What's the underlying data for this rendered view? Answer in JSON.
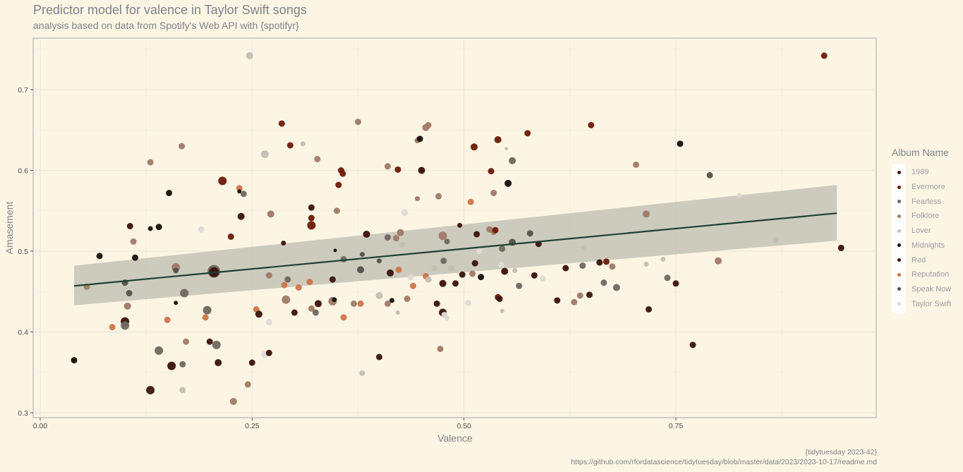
{
  "title": "Predictor model for valence in Taylor Swift songs",
  "subtitle": "analysis based on data from Spotify's Web API with {spotifyr}",
  "caption": {
    "line1": "{tidytuesday 2023-42}",
    "line2": "https://github.com/rfordatascience/tidytuesday/blob/master/data/2023/2023-10-17/readme.md"
  },
  "legend": {
    "title": "Album Name",
    "items": [
      {
        "name": "1989",
        "color": "#3d1510"
      },
      {
        "name": "Evermore",
        "color": "#6b1a06"
      },
      {
        "name": "Fearless",
        "color": "#706660"
      },
      {
        "name": "Folklore",
        "color": "#a07a66"
      },
      {
        "name": "Lover",
        "color": "#c4bdb4"
      },
      {
        "name": "Midnights",
        "color": "#16100c"
      },
      {
        "name": "Red",
        "color": "#3a1208"
      },
      {
        "name": "Reputation",
        "color": "#cf7448"
      },
      {
        "name": "Speak Now",
        "color": "#54504c"
      },
      {
        "name": "Taylor Swift",
        "color": "#dedad6"
      }
    ]
  },
  "chart_data": {
    "type": "scatter",
    "xlabel": "Valence",
    "ylabel": "Amasement",
    "xlim": [
      0,
      0.99
    ],
    "ylim": [
      0.3,
      0.74
    ],
    "xticks": [
      {
        "v": 0,
        "label": "0.00"
      },
      {
        "v": 0.25,
        "label": "0.25"
      },
      {
        "v": 0.5,
        "label": "0.50"
      },
      {
        "v": 0.75,
        "label": "0.75"
      }
    ],
    "yticks": [
      {
        "v": 0.3,
        "label": "0.3"
      },
      {
        "v": 0.4,
        "label": "0.4"
      },
      {
        "v": 0.5,
        "label": "0.5"
      },
      {
        "v": 0.6,
        "label": "0.6"
      },
      {
        "v": 0.7,
        "label": "0.7"
      }
    ],
    "fit": {
      "x0": 0.04,
      "y0": 0.457,
      "x1": 0.94,
      "y1": 0.547,
      "ci0": [
        0.433,
        0.482
      ],
      "ci1": [
        0.513,
        0.582
      ],
      "color": "#1d4033",
      "band_color": "#c4c3b6"
    },
    "points": [
      {
        "x": 0.925,
        "y": 0.742,
        "a": 1
      },
      {
        "x": 0.247,
        "y": 0.742,
        "a": 4,
        "s": 10
      },
      {
        "x": 0.945,
        "y": 0.504,
        "a": 6
      },
      {
        "x": 0.04,
        "y": 0.365,
        "a": 5
      },
      {
        "x": 0.07,
        "y": 0.494,
        "a": 5
      },
      {
        "x": 0.055,
        "y": 0.456,
        "a": 3
      },
      {
        "x": 0.085,
        "y": 0.406,
        "a": 7
      },
      {
        "x": 0.1,
        "y": 0.461,
        "a": 8
      },
      {
        "x": 0.1,
        "y": 0.413,
        "a": 6,
        "s": 12
      },
      {
        "x": 0.1,
        "y": 0.408,
        "a": 2,
        "s": 12
      },
      {
        "x": 0.103,
        "y": 0.432,
        "a": 3,
        "s": 10
      },
      {
        "x": 0.105,
        "y": 0.448,
        "a": 8
      },
      {
        "x": 0.106,
        "y": 0.531,
        "a": 6
      },
      {
        "x": 0.11,
        "y": 0.512,
        "a": 3
      },
      {
        "x": 0.112,
        "y": 0.492,
        "a": 5
      },
      {
        "x": 0.13,
        "y": 0.528,
        "a": 5,
        "s": 7
      },
      {
        "x": 0.13,
        "y": 0.61,
        "a": 3
      },
      {
        "x": 0.13,
        "y": 0.328,
        "a": 0,
        "s": 12
      },
      {
        "x": 0.14,
        "y": 0.53,
        "a": 5,
        "s": 9
      },
      {
        "x": 0.14,
        "y": 0.377,
        "a": 2,
        "s": 12
      },
      {
        "x": 0.15,
        "y": 0.415,
        "a": 7
      },
      {
        "x": 0.152,
        "y": 0.572,
        "a": 5
      },
      {
        "x": 0.155,
        "y": 0.358,
        "a": 6,
        "s": 12
      },
      {
        "x": 0.16,
        "y": 0.48,
        "a": 3,
        "s": 12
      },
      {
        "x": 0.16,
        "y": 0.476,
        "a": 8,
        "s": 8
      },
      {
        "x": 0.16,
        "y": 0.436,
        "a": 5,
        "s": 6
      },
      {
        "x": 0.167,
        "y": 0.63,
        "a": 3
      },
      {
        "x": 0.168,
        "y": 0.36,
        "a": 2
      },
      {
        "x": 0.168,
        "y": 0.328,
        "a": 4
      },
      {
        "x": 0.17,
        "y": 0.448,
        "a": 2,
        "s": 12
      },
      {
        "x": 0.172,
        "y": 0.388,
        "a": 3
      },
      {
        "x": 0.19,
        "y": 0.527,
        "a": 9
      },
      {
        "x": 0.195,
        "y": 0.418,
        "a": 7
      },
      {
        "x": 0.197,
        "y": 0.427,
        "a": 2,
        "s": 12
      },
      {
        "x": 0.2,
        "y": 0.388,
        "a": 6
      },
      {
        "x": 0.205,
        "y": 0.475,
        "a": 2,
        "s": 18
      },
      {
        "x": 0.205,
        "y": 0.474,
        "a": 6,
        "s": 14
      },
      {
        "x": 0.208,
        "y": 0.384,
        "a": 2,
        "s": 12
      },
      {
        "x": 0.21,
        "y": 0.362,
        "a": 6,
        "s": 10
      },
      {
        "x": 0.215,
        "y": 0.587,
        "a": 1,
        "s": 12
      },
      {
        "x": 0.225,
        "y": 0.518,
        "a": 1
      },
      {
        "x": 0.228,
        "y": 0.314,
        "a": 3,
        "s": 10
      },
      {
        "x": 0.235,
        "y": 0.578,
        "a": 7
      },
      {
        "x": 0.235,
        "y": 0.574,
        "a": 5,
        "s": 6
      },
      {
        "x": 0.237,
        "y": 0.543,
        "a": 6,
        "s": 10
      },
      {
        "x": 0.24,
        "y": 0.571,
        "a": 2
      },
      {
        "x": 0.245,
        "y": 0.335,
        "a": 3
      },
      {
        "x": 0.25,
        "y": 0.362,
        "a": 6
      },
      {
        "x": 0.255,
        "y": 0.428,
        "a": 7
      },
      {
        "x": 0.258,
        "y": 0.422,
        "a": 6,
        "s": 10
      },
      {
        "x": 0.265,
        "y": 0.62,
        "a": 4,
        "s": 11
      },
      {
        "x": 0.265,
        "y": 0.372,
        "a": 9,
        "s": 10
      },
      {
        "x": 0.27,
        "y": 0.374,
        "a": 6
      },
      {
        "x": 0.27,
        "y": 0.412,
        "a": 9
      },
      {
        "x": 0.27,
        "y": 0.47,
        "a": 3
      },
      {
        "x": 0.272,
        "y": 0.546,
        "a": 3,
        "s": 10
      },
      {
        "x": 0.285,
        "y": 0.658,
        "a": 1
      },
      {
        "x": 0.287,
        "y": 0.51,
        "a": 6,
        "s": 7
      },
      {
        "x": 0.288,
        "y": 0.458,
        "a": 7
      },
      {
        "x": 0.29,
        "y": 0.44,
        "a": 3,
        "s": 12
      },
      {
        "x": 0.292,
        "y": 0.465,
        "a": 2
      },
      {
        "x": 0.295,
        "y": 0.631,
        "a": 1
      },
      {
        "x": 0.3,
        "y": 0.424,
        "a": 6
      },
      {
        "x": 0.305,
        "y": 0.455,
        "a": 7
      },
      {
        "x": 0.31,
        "y": 0.633,
        "a": 4,
        "s": 7
      },
      {
        "x": 0.318,
        "y": 0.462,
        "a": 7
      },
      {
        "x": 0.32,
        "y": 0.554,
        "a": 6
      },
      {
        "x": 0.32,
        "y": 0.541,
        "a": 1
      },
      {
        "x": 0.32,
        "y": 0.532,
        "a": 1,
        "s": 12
      },
      {
        "x": 0.32,
        "y": 0.429,
        "a": 3
      },
      {
        "x": 0.325,
        "y": 0.424,
        "a": 2
      },
      {
        "x": 0.327,
        "y": 0.614,
        "a": 3
      },
      {
        "x": 0.328,
        "y": 0.435,
        "a": 6,
        "s": 10
      },
      {
        "x": 0.345,
        "y": 0.465,
        "a": 6
      },
      {
        "x": 0.345,
        "y": 0.438,
        "a": 3,
        "s": 12
      },
      {
        "x": 0.347,
        "y": 0.44,
        "a": 5,
        "s": 7
      },
      {
        "x": 0.348,
        "y": 0.501,
        "a": 5,
        "s": 5
      },
      {
        "x": 0.35,
        "y": 0.55,
        "a": 3
      },
      {
        "x": 0.352,
        "y": 0.582,
        "a": 1
      },
      {
        "x": 0.355,
        "y": 0.6,
        "a": 1
      },
      {
        "x": 0.357,
        "y": 0.596,
        "a": 1
      },
      {
        "x": 0.358,
        "y": 0.418,
        "a": 7
      },
      {
        "x": 0.358,
        "y": 0.49,
        "a": 2
      },
      {
        "x": 0.37,
        "y": 0.435,
        "a": 3
      },
      {
        "x": 0.375,
        "y": 0.66,
        "a": 3
      },
      {
        "x": 0.378,
        "y": 0.477,
        "a": 8,
        "s": 10
      },
      {
        "x": 0.378,
        "y": 0.435,
        "a": 7
      },
      {
        "x": 0.38,
        "y": 0.349,
        "a": 4,
        "s": 8
      },
      {
        "x": 0.38,
        "y": 0.496,
        "a": 8,
        "s": 7
      },
      {
        "x": 0.385,
        "y": 0.521,
        "a": 6,
        "s": 10
      },
      {
        "x": 0.4,
        "y": 0.369,
        "a": 6
      },
      {
        "x": 0.4,
        "y": 0.445,
        "a": 4,
        "s": 10
      },
      {
        "x": 0.4,
        "y": 0.488,
        "a": 8,
        "s": 7
      },
      {
        "x": 0.41,
        "y": 0.605,
        "a": 3
      },
      {
        "x": 0.41,
        "y": 0.517,
        "a": 2
      },
      {
        "x": 0.41,
        "y": 0.435,
        "a": 3
      },
      {
        "x": 0.413,
        "y": 0.473,
        "a": 6,
        "s": 10
      },
      {
        "x": 0.415,
        "y": 0.439,
        "a": 5,
        "s": 7
      },
      {
        "x": 0.42,
        "y": 0.516,
        "a": 3
      },
      {
        "x": 0.422,
        "y": 0.601,
        "a": 1
      },
      {
        "x": 0.422,
        "y": 0.424,
        "a": 4,
        "s": 6
      },
      {
        "x": 0.423,
        "y": 0.477,
        "a": 7
      },
      {
        "x": 0.425,
        "y": 0.523,
        "a": 3,
        "s": 10
      },
      {
        "x": 0.427,
        "y": 0.508,
        "a": 4,
        "s": 8
      },
      {
        "x": 0.43,
        "y": 0.548,
        "a": 9,
        "s": 10
      },
      {
        "x": 0.433,
        "y": 0.441,
        "a": 3
      },
      {
        "x": 0.437,
        "y": 0.468,
        "a": 9
      },
      {
        "x": 0.44,
        "y": 0.457,
        "a": 7
      },
      {
        "x": 0.445,
        "y": 0.565,
        "a": 3,
        "s": 7
      },
      {
        "x": 0.445,
        "y": 0.637,
        "a": 3,
        "s": 8
      },
      {
        "x": 0.448,
        "y": 0.639,
        "a": 5
      },
      {
        "x": 0.45,
        "y": 0.6,
        "a": 6,
        "s": 10
      },
      {
        "x": 0.455,
        "y": 0.653,
        "a": 3,
        "s": 10
      },
      {
        "x": 0.458,
        "y": 0.656,
        "a": 3
      },
      {
        "x": 0.455,
        "y": 0.469,
        "a": 7
      },
      {
        "x": 0.458,
        "y": 0.465,
        "a": 4
      },
      {
        "x": 0.465,
        "y": 0.479,
        "a": 4,
        "s": 8
      },
      {
        "x": 0.468,
        "y": 0.435,
        "a": 6
      },
      {
        "x": 0.47,
        "y": 0.568,
        "a": 3
      },
      {
        "x": 0.472,
        "y": 0.379,
        "a": 3
      },
      {
        "x": 0.475,
        "y": 0.46,
        "a": 6,
        "s": 10
      },
      {
        "x": 0.475,
        "y": 0.424,
        "a": 6,
        "s": 11
      },
      {
        "x": 0.475,
        "y": 0.519,
        "a": 3,
        "s": 12
      },
      {
        "x": 0.476,
        "y": 0.488,
        "a": 2
      },
      {
        "x": 0.477,
        "y": 0.421,
        "a": 9
      },
      {
        "x": 0.48,
        "y": 0.512,
        "a": 2,
        "s": 8
      },
      {
        "x": 0.48,
        "y": 0.417,
        "a": 9,
        "s": 7
      },
      {
        "x": 0.485,
        "y": 0.479,
        "a": 4
      },
      {
        "x": 0.49,
        "y": 0.46,
        "a": 6
      },
      {
        "x": 0.495,
        "y": 0.532,
        "a": 6,
        "s": 7
      },
      {
        "x": 0.498,
        "y": 0.471,
        "a": 6
      },
      {
        "x": 0.505,
        "y": 0.436,
        "a": 9
      },
      {
        "x": 0.508,
        "y": 0.561,
        "a": 7
      },
      {
        "x": 0.51,
        "y": 0.472,
        "a": 3
      },
      {
        "x": 0.512,
        "y": 0.629,
        "a": 1,
        "s": 10
      },
      {
        "x": 0.513,
        "y": 0.485,
        "a": 6
      },
      {
        "x": 0.515,
        "y": 0.521,
        "a": 6
      },
      {
        "x": 0.518,
        "y": 0.5,
        "a": 9,
        "s": 8
      },
      {
        "x": 0.52,
        "y": 0.468,
        "a": 5
      },
      {
        "x": 0.53,
        "y": 0.527,
        "a": 3
      },
      {
        "x": 0.532,
        "y": 0.599,
        "a": 1
      },
      {
        "x": 0.535,
        "y": 0.524,
        "a": 3
      },
      {
        "x": 0.535,
        "y": 0.572,
        "a": 3
      },
      {
        "x": 0.537,
        "y": 0.526,
        "a": 1
      },
      {
        "x": 0.54,
        "y": 0.638,
        "a": 1,
        "s": 10
      },
      {
        "x": 0.54,
        "y": 0.443,
        "a": 1
      },
      {
        "x": 0.542,
        "y": 0.441,
        "a": 6
      },
      {
        "x": 0.544,
        "y": 0.483,
        "a": 9
      },
      {
        "x": 0.545,
        "y": 0.503,
        "a": 2
      },
      {
        "x": 0.545,
        "y": 0.426,
        "a": 4,
        "s": 6
      },
      {
        "x": 0.548,
        "y": 0.475,
        "a": 6,
        "s": 10
      },
      {
        "x": 0.55,
        "y": 0.627,
        "a": 4,
        "s": 5
      },
      {
        "x": 0.552,
        "y": 0.584,
        "a": 5,
        "s": 10
      },
      {
        "x": 0.557,
        "y": 0.612,
        "a": 2,
        "s": 10
      },
      {
        "x": 0.557,
        "y": 0.511,
        "a": 8,
        "s": 10
      },
      {
        "x": 0.56,
        "y": 0.476,
        "a": 4,
        "s": 7
      },
      {
        "x": 0.565,
        "y": 0.457,
        "a": 2
      },
      {
        "x": 0.575,
        "y": 0.646,
        "a": 1
      },
      {
        "x": 0.578,
        "y": 0.522,
        "a": 8
      },
      {
        "x": 0.583,
        "y": 0.47,
        "a": 6
      },
      {
        "x": 0.588,
        "y": 0.509,
        "a": 6
      },
      {
        "x": 0.593,
        "y": 0.466,
        "a": 9
      },
      {
        "x": 0.61,
        "y": 0.439,
        "a": 6
      },
      {
        "x": 0.62,
        "y": 0.479,
        "a": 6
      },
      {
        "x": 0.63,
        "y": 0.437,
        "a": 3
      },
      {
        "x": 0.637,
        "y": 0.445,
        "a": 3
      },
      {
        "x": 0.64,
        "y": 0.504,
        "a": 4,
        "s": 7
      },
      {
        "x": 0.64,
        "y": 0.482,
        "a": 2
      },
      {
        "x": 0.648,
        "y": 0.446,
        "a": 6
      },
      {
        "x": 0.65,
        "y": 0.656,
        "a": 1
      },
      {
        "x": 0.66,
        "y": 0.486,
        "a": 6
      },
      {
        "x": 0.665,
        "y": 0.461,
        "a": 2
      },
      {
        "x": 0.668,
        "y": 0.487,
        "a": 1
      },
      {
        "x": 0.675,
        "y": 0.481,
        "a": 3
      },
      {
        "x": 0.68,
        "y": 0.455,
        "a": 2,
        "s": 10
      },
      {
        "x": 0.703,
        "y": 0.607,
        "a": 3
      },
      {
        "x": 0.715,
        "y": 0.546,
        "a": 3,
        "s": 10
      },
      {
        "x": 0.715,
        "y": 0.484,
        "a": 4,
        "s": 7
      },
      {
        "x": 0.718,
        "y": 0.428,
        "a": 6
      },
      {
        "x": 0.735,
        "y": 0.49,
        "a": 4,
        "s": 7
      },
      {
        "x": 0.74,
        "y": 0.467,
        "a": 2
      },
      {
        "x": 0.75,
        "y": 0.46,
        "a": 6
      },
      {
        "x": 0.755,
        "y": 0.633,
        "a": 5
      },
      {
        "x": 0.77,
        "y": 0.384,
        "a": 6
      },
      {
        "x": 0.79,
        "y": 0.594,
        "a": 8
      },
      {
        "x": 0.8,
        "y": 0.488,
        "a": 3,
        "s": 10
      },
      {
        "x": 0.825,
        "y": 0.569,
        "a": 9,
        "s": 7
      },
      {
        "x": 0.868,
        "y": 0.514,
        "a": 4,
        "s": 9
      }
    ]
  }
}
